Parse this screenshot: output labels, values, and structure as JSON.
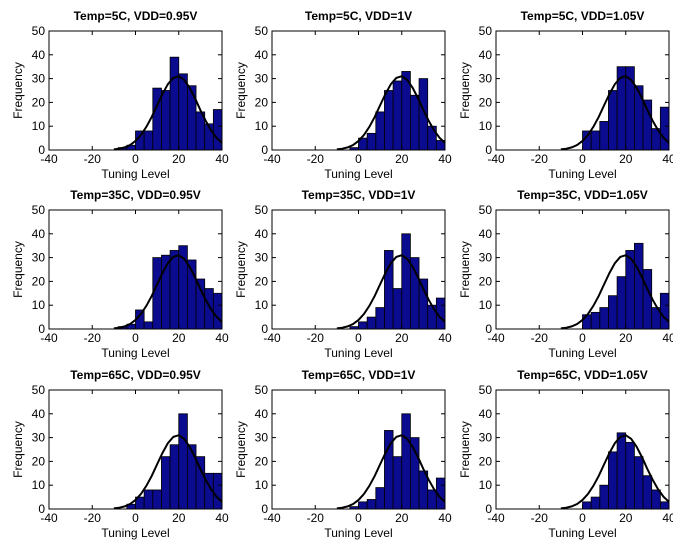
{
  "chart_data": [
    {
      "type": "histogram",
      "title": "Temp=5C, VDD=0.95V",
      "xlabel": "Tuning Level",
      "ylabel": "Frequency",
      "bins": [
        -8,
        -4,
        0,
        4,
        8,
        12,
        16,
        20,
        24,
        28,
        32,
        36,
        40
      ],
      "values": [
        1,
        2,
        8,
        8,
        26,
        25,
        39,
        32,
        27,
        16,
        11,
        17
      ],
      "color": "#0b0b8f",
      "xlim": [
        -40,
        40
      ],
      "xticks": [
        -40,
        -20,
        0,
        20,
        40
      ],
      "ylim": [
        0,
        50
      ],
      "yticks": [
        0,
        10,
        20,
        30,
        40,
        50
      ],
      "fit": {
        "x": [
          -10,
          -7.5,
          -5,
          -2.5,
          0,
          2.5,
          5,
          7.5,
          10,
          12.5,
          15,
          17.5,
          20,
          22.5,
          25,
          27.5,
          30,
          32.5,
          35,
          37.5,
          40
        ],
        "values": [
          0.25,
          0.55,
          1.1,
          2.1,
          3.8,
          6.3,
          9.7,
          13.9,
          18.8,
          23.6,
          27.7,
          30.3,
          31,
          29.5,
          26.2,
          21.8,
          16.8,
          12.2,
          8.2,
          5.1,
          3
        ],
        "color": "#000000"
      }
    },
    {
      "type": "histogram",
      "title": "Temp=5C, VDD=1V",
      "xlabel": "Tuning Level",
      "ylabel": "Frequency",
      "bins": [
        -8,
        -4,
        0,
        4,
        8,
        12,
        16,
        20,
        24,
        28,
        32,
        36,
        40
      ],
      "values": [
        0,
        1,
        5,
        7,
        16,
        25,
        29,
        33,
        23,
        30,
        10,
        4
      ],
      "color": "#0b0b8f",
      "xlim": [
        -40,
        40
      ],
      "xticks": [
        -40,
        -20,
        0,
        20,
        40
      ],
      "ylim": [
        0,
        50
      ],
      "yticks": [
        0,
        10,
        20,
        30,
        40,
        50
      ],
      "fit": {
        "x": [
          -10,
          -7.5,
          -5,
          -2.5,
          0,
          2.5,
          5,
          7.5,
          10,
          12.5,
          15,
          17.5,
          20,
          22.5,
          25,
          27.5,
          30,
          32.5,
          35,
          37.5,
          40
        ],
        "values": [
          0.25,
          0.55,
          1.1,
          2.1,
          3.8,
          6.3,
          9.7,
          13.9,
          18.8,
          23.6,
          27.7,
          30.3,
          31,
          29.5,
          26.2,
          21.8,
          16.8,
          12.2,
          8.2,
          5.1,
          3
        ],
        "color": "#000000"
      }
    },
    {
      "type": "histogram",
      "title": "Temp=5C, VDD=1.05V",
      "xlabel": "Tuning Level",
      "ylabel": "Frequency",
      "bins": [
        -8,
        -4,
        0,
        4,
        8,
        12,
        16,
        20,
        24,
        28,
        32,
        36,
        40
      ],
      "values": [
        0,
        0,
        8,
        8,
        12,
        25,
        35,
        35,
        27,
        21,
        9,
        18
      ],
      "color": "#0b0b8f",
      "xlim": [
        -40,
        40
      ],
      "xticks": [
        -40,
        -20,
        0,
        20,
        40
      ],
      "ylim": [
        0,
        50
      ],
      "yticks": [
        0,
        10,
        20,
        30,
        40,
        50
      ],
      "fit": {
        "x": [
          -10,
          -7.5,
          -5,
          -2.5,
          0,
          2.5,
          5,
          7.5,
          10,
          12.5,
          15,
          17.5,
          20,
          22.5,
          25,
          27.5,
          30,
          32.5,
          35,
          37.5,
          40
        ],
        "values": [
          0.25,
          0.55,
          1.1,
          2.1,
          3.8,
          6.3,
          9.7,
          13.9,
          18.8,
          23.6,
          27.7,
          30.3,
          31,
          29.5,
          26.2,
          21.8,
          16.8,
          12.2,
          8.2,
          5.1,
          3
        ],
        "color": "#000000"
      }
    },
    {
      "type": "histogram",
      "title": "Temp=35C, VDD=0.95V",
      "xlabel": "Tuning Level",
      "ylabel": "Frequency",
      "bins": [
        -8,
        -4,
        0,
        4,
        8,
        12,
        16,
        20,
        24,
        28,
        32,
        36,
        40
      ],
      "values": [
        1,
        2,
        8,
        3,
        30,
        31,
        33,
        35,
        29,
        21,
        17,
        15
      ],
      "color": "#0b0b8f",
      "xlim": [
        -40,
        40
      ],
      "xticks": [
        -40,
        -20,
        0,
        20,
        40
      ],
      "ylim": [
        0,
        50
      ],
      "yticks": [
        0,
        10,
        20,
        30,
        40,
        50
      ],
      "fit": {
        "x": [
          -10,
          -7.5,
          -5,
          -2.5,
          0,
          2.5,
          5,
          7.5,
          10,
          12.5,
          15,
          17.5,
          20,
          22.5,
          25,
          27.5,
          30,
          32.5,
          35,
          37.5,
          40
        ],
        "values": [
          0.25,
          0.55,
          1.1,
          2.1,
          3.8,
          6.3,
          9.7,
          13.9,
          18.8,
          23.6,
          27.7,
          30.3,
          31,
          29.5,
          26.2,
          21.8,
          16.8,
          12.2,
          8.2,
          5.1,
          3
        ],
        "color": "#000000"
      }
    },
    {
      "type": "histogram",
      "title": "Temp=35C, VDD=1V",
      "xlabel": "Tuning Level",
      "ylabel": "Frequency",
      "bins": [
        -8,
        -4,
        0,
        4,
        8,
        12,
        16,
        20,
        24,
        28,
        32,
        36,
        40
      ],
      "values": [
        0,
        1,
        3,
        5,
        9,
        33,
        17,
        40,
        30,
        21,
        10,
        13
      ],
      "color": "#0b0b8f",
      "xlim": [
        -40,
        40
      ],
      "xticks": [
        -40,
        -20,
        0,
        20,
        40
      ],
      "ylim": [
        0,
        50
      ],
      "yticks": [
        0,
        10,
        20,
        30,
        40,
        50
      ],
      "fit": {
        "x": [
          -10,
          -7.5,
          -5,
          -2.5,
          0,
          2.5,
          5,
          7.5,
          10,
          12.5,
          15,
          17.5,
          20,
          22.5,
          25,
          27.5,
          30,
          32.5,
          35,
          37.5,
          40
        ],
        "values": [
          0.25,
          0.55,
          1.1,
          2.1,
          3.8,
          6.3,
          9.7,
          13.9,
          18.8,
          23.6,
          27.7,
          30.3,
          31,
          29.5,
          26.2,
          21.8,
          16.8,
          12.2,
          8.2,
          5.1,
          3
        ],
        "color": "#000000"
      }
    },
    {
      "type": "histogram",
      "title": "Temp=35C, VDD=1.05V",
      "xlabel": "Tuning Level",
      "ylabel": "Frequency",
      "bins": [
        -8,
        -4,
        0,
        4,
        8,
        12,
        16,
        20,
        24,
        28,
        32,
        36,
        40
      ],
      "values": [
        0,
        0,
        6,
        7,
        9,
        14,
        22,
        33,
        36,
        25,
        9,
        15
      ],
      "color": "#0b0b8f",
      "xlim": [
        -40,
        40
      ],
      "xticks": [
        -40,
        -20,
        0,
        20,
        40
      ],
      "ylim": [
        0,
        50
      ],
      "yticks": [
        0,
        10,
        20,
        30,
        40,
        50
      ],
      "fit": {
        "x": [
          -10,
          -7.5,
          -5,
          -2.5,
          0,
          2.5,
          5,
          7.5,
          10,
          12.5,
          15,
          17.5,
          20,
          22.5,
          25,
          27.5,
          30,
          32.5,
          35,
          37.5,
          40
        ],
        "values": [
          0.25,
          0.55,
          1.1,
          2.1,
          3.8,
          6.3,
          9.7,
          13.9,
          18.8,
          23.6,
          27.7,
          30.3,
          31,
          29.5,
          26.2,
          21.8,
          16.8,
          12.2,
          8.2,
          5.1,
          3
        ],
        "color": "#000000"
      }
    },
    {
      "type": "histogram",
      "title": "Temp=65C, VDD=0.95V",
      "xlabel": "Tuning Level",
      "ylabel": "Frequency",
      "bins": [
        -8,
        -4,
        0,
        4,
        8,
        12,
        16,
        20,
        24,
        28,
        32,
        36,
        40
      ],
      "values": [
        0,
        2,
        5,
        8,
        8,
        22,
        27,
        40,
        27,
        22,
        15,
        15
      ],
      "color": "#0b0b8f",
      "xlim": [
        -40,
        40
      ],
      "xticks": [
        -40,
        -20,
        0,
        20,
        40
      ],
      "ylim": [
        0,
        50
      ],
      "yticks": [
        0,
        10,
        20,
        30,
        40,
        50
      ],
      "fit": {
        "x": [
          -10,
          -7.5,
          -5,
          -2.5,
          0,
          2.5,
          5,
          7.5,
          10,
          12.5,
          15,
          17.5,
          20,
          22.5,
          25,
          27.5,
          30,
          32.5,
          35,
          37.5,
          40
        ],
        "values": [
          0.25,
          0.55,
          1.1,
          2.1,
          3.8,
          6.3,
          9.7,
          13.9,
          18.8,
          23.6,
          27.7,
          30.3,
          31,
          29.5,
          26.2,
          21.8,
          16.8,
          12.2,
          8.2,
          5.1,
          3
        ],
        "color": "#000000"
      }
    },
    {
      "type": "histogram",
      "title": "Temp=65C, VDD=1V",
      "xlabel": "Tuning Level",
      "ylabel": "Frequency",
      "bins": [
        -8,
        -4,
        0,
        4,
        8,
        12,
        16,
        20,
        24,
        28,
        32,
        36,
        40
      ],
      "values": [
        0,
        1,
        3,
        4,
        9,
        33,
        22,
        40,
        30,
        16,
        8,
        13
      ],
      "color": "#0b0b8f",
      "xlim": [
        -40,
        40
      ],
      "xticks": [
        -40,
        -20,
        0,
        20,
        40
      ],
      "ylim": [
        0,
        50
      ],
      "yticks": [
        0,
        10,
        20,
        30,
        40,
        50
      ],
      "fit": {
        "x": [
          -10,
          -7.5,
          -5,
          -2.5,
          0,
          2.5,
          5,
          7.5,
          10,
          12.5,
          15,
          17.5,
          20,
          22.5,
          25,
          27.5,
          30,
          32.5,
          35,
          37.5,
          40
        ],
        "values": [
          0.25,
          0.55,
          1.1,
          2.1,
          3.8,
          6.3,
          9.7,
          13.9,
          18.8,
          23.6,
          27.7,
          30.3,
          31,
          29.5,
          26.2,
          21.8,
          16.8,
          12.2,
          8.2,
          5.1,
          3
        ],
        "color": "#000000"
      }
    },
    {
      "type": "histogram",
      "title": "Temp=65C, VDD=1.05V",
      "xlabel": "Tuning Level",
      "ylabel": "Frequency",
      "bins": [
        -8,
        -4,
        0,
        4,
        8,
        12,
        16,
        20,
        24,
        28,
        32,
        36,
        40
      ],
      "values": [
        0,
        0,
        3,
        5,
        10,
        24,
        32,
        28,
        22,
        14,
        8,
        3
      ],
      "color": "#0b0b8f",
      "xlim": [
        -40,
        40
      ],
      "xticks": [
        -40,
        -20,
        0,
        20,
        40
      ],
      "ylim": [
        0,
        50
      ],
      "yticks": [
        0,
        10,
        20,
        30,
        40,
        50
      ],
      "fit": {
        "x": [
          -10,
          -7.5,
          -5,
          -2.5,
          0,
          2.5,
          5,
          7.5,
          10,
          12.5,
          15,
          17.5,
          20,
          22.5,
          25,
          27.5,
          30,
          32.5,
          35,
          37.5,
          40
        ],
        "values": [
          0.25,
          0.55,
          1.1,
          2.1,
          3.8,
          6.3,
          9.7,
          13.9,
          18.8,
          23.6,
          27.7,
          30.3,
          31,
          29.5,
          26.2,
          21.8,
          16.8,
          12.2,
          8.2,
          5.1,
          3
        ],
        "color": "#000000"
      }
    }
  ]
}
